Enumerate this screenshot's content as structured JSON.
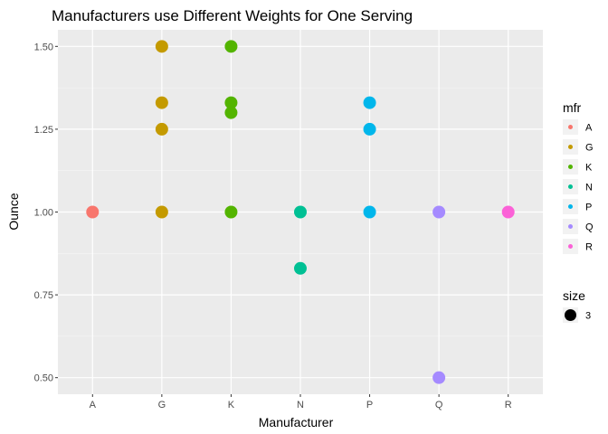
{
  "chart_data": {
    "type": "scatter",
    "title": "Manufacturers use Different Weights for One Serving",
    "xlabel": "Manufacturer",
    "ylabel": "Ounce",
    "categories": [
      "A",
      "G",
      "K",
      "N",
      "P",
      "Q",
      "R"
    ],
    "ylim": [
      0.45,
      1.55
    ],
    "yticks": [
      0.5,
      0.75,
      1.0,
      1.25,
      1.5
    ],
    "ytick_labels": [
      "0.50",
      "0.75",
      "1.00",
      "1.25",
      "1.50"
    ],
    "grid": true,
    "legend_position": "right",
    "series": [
      {
        "name": "A",
        "color": "#F8766D",
        "points": [
          {
            "x": "A",
            "y": 1.0
          }
        ]
      },
      {
        "name": "G",
        "color": "#C49A00",
        "points": [
          {
            "x": "G",
            "y": 1.5
          },
          {
            "x": "G",
            "y": 1.33
          },
          {
            "x": "G",
            "y": 1.25
          },
          {
            "x": "G",
            "y": 1.0
          }
        ]
      },
      {
        "name": "K",
        "color": "#53B400",
        "points": [
          {
            "x": "K",
            "y": 1.5
          },
          {
            "x": "K",
            "y": 1.33
          },
          {
            "x": "K",
            "y": 1.3
          },
          {
            "x": "K",
            "y": 1.0
          }
        ]
      },
      {
        "name": "N",
        "color": "#00C094",
        "points": [
          {
            "x": "N",
            "y": 1.0
          },
          {
            "x": "N",
            "y": 0.83
          }
        ]
      },
      {
        "name": "P",
        "color": "#00B6EB",
        "points": [
          {
            "x": "P",
            "y": 1.33
          },
          {
            "x": "P",
            "y": 1.25
          },
          {
            "x": "P",
            "y": 1.0
          }
        ]
      },
      {
        "name": "Q",
        "color": "#A58AFF",
        "points": [
          {
            "x": "Q",
            "y": 1.0
          },
          {
            "x": "Q",
            "y": 0.5
          }
        ]
      },
      {
        "name": "R",
        "color": "#FB61D7",
        "points": [
          {
            "x": "R",
            "y": 1.0
          }
        ]
      }
    ],
    "legends": {
      "color": {
        "title": "mfr",
        "items": [
          "A",
          "G",
          "K",
          "N",
          "P",
          "Q",
          "R"
        ]
      },
      "size": {
        "title": "size",
        "items": [
          "3"
        ]
      }
    }
  }
}
